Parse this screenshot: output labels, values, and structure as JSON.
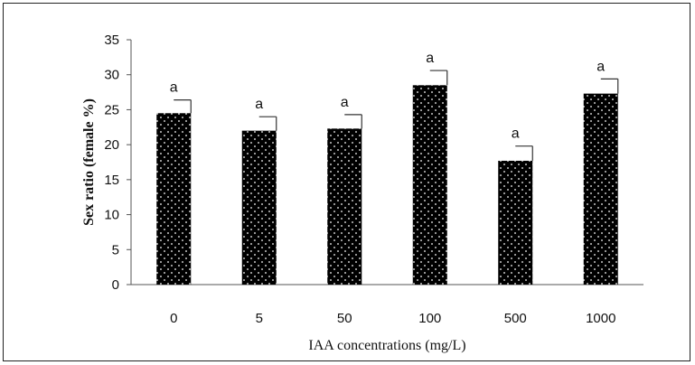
{
  "chart_data": {
    "type": "bar",
    "categories": [
      "0",
      "5",
      "50",
      "100",
      "500",
      "1000"
    ],
    "values": [
      24.5,
      22.0,
      22.3,
      28.5,
      17.7,
      27.3
    ],
    "errors": [
      1.9,
      2.0,
      2.0,
      2.1,
      2.1,
      2.1
    ],
    "significance_labels": [
      "a",
      "a",
      "a",
      "a",
      "a",
      "a"
    ],
    "xlabel": "IAA concentrations (mg/L)",
    "ylabel": "Sex ratio (female %)",
    "ylim": [
      0,
      35
    ],
    "yticks": [
      0,
      5,
      10,
      15,
      20,
      25,
      30,
      35
    ],
    "grid": false,
    "bar_color": "#000000",
    "bar_pattern": "white-dots"
  }
}
